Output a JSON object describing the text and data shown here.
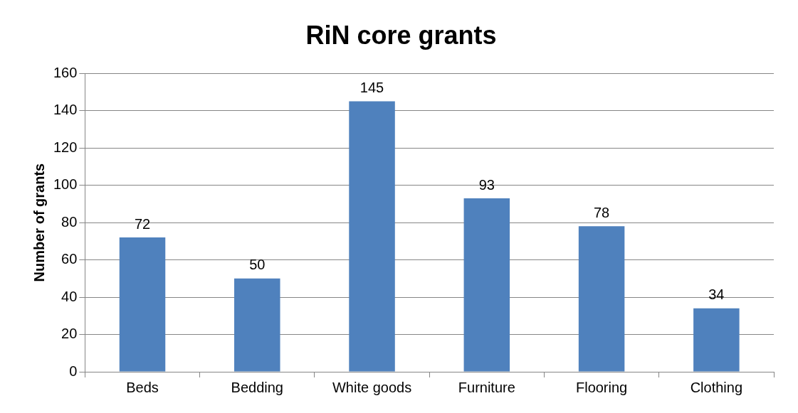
{
  "chart_data": {
    "type": "bar",
    "title": "RiN core grants",
    "ylabel": "Number of grants",
    "categories": [
      "Beds",
      "Bedding",
      "White goods",
      "Furniture",
      "Flooring",
      "Clothing"
    ],
    "values": [
      72,
      50,
      145,
      93,
      78,
      34
    ],
    "color": "#4f81bd",
    "ylim": [
      0,
      160
    ],
    "yticks": [
      0,
      20,
      40,
      60,
      80,
      100,
      120,
      140,
      160
    ],
    "grid": "y",
    "data_labels": true
  }
}
